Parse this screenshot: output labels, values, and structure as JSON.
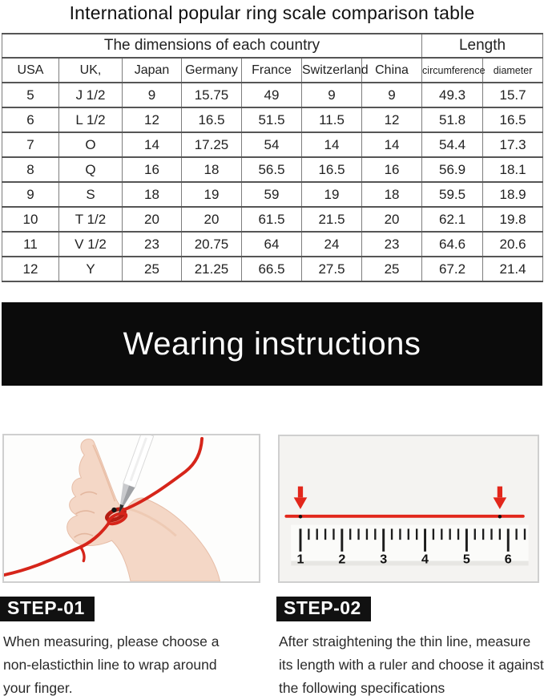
{
  "title": "International popular ring scale comparison table",
  "size_table": {
    "group_header_left": "The dimensions of each country",
    "group_header_right": "Length",
    "columns": [
      "USA",
      "UK,",
      "Japan",
      "Germany",
      "France",
      "Switzerland",
      "China",
      "circumference",
      "diameter"
    ],
    "rows": [
      [
        "5",
        "J 1/2",
        "9",
        "15.75",
        "49",
        "9",
        "9",
        "49.3",
        "15.7"
      ],
      [
        "6",
        "L 1/2",
        "12",
        "16.5",
        "51.5",
        "11.5",
        "12",
        "51.8",
        "16.5"
      ],
      [
        "7",
        "O",
        "14",
        "17.25",
        "54",
        "14",
        "14",
        "54.4",
        "17.3"
      ],
      [
        "8",
        "Q",
        "16",
        "18",
        "56.5",
        "16.5",
        "16",
        "56.9",
        "18.1"
      ],
      [
        "9",
        "S",
        "18",
        "19",
        "59",
        "19",
        "18",
        "59.5",
        "18.9"
      ],
      [
        "10",
        "T 1/2",
        "20",
        "20",
        "61.5",
        "21.5",
        "20",
        "62.1",
        "19.8"
      ],
      [
        "11",
        "V 1/2",
        "23",
        "20.75",
        "64",
        "24",
        "23",
        "64.6",
        "20.6"
      ],
      [
        "12",
        "Y",
        "25",
        "21.25",
        "66.5",
        "27.5",
        "25",
        "67.2",
        "21.4"
      ]
    ]
  },
  "banner": {
    "text": "Wearing instructions",
    "bg": "#0b0b0b",
    "fg": "#ffffff"
  },
  "step1": {
    "badge": "STEP-01",
    "lines": [
      "When measuring, please choose a",
      "non-elasticthin line to wrap around",
      "your finger."
    ]
  },
  "step2": {
    "badge": "STEP-02",
    "lines": [
      "After straightening the thin line, measure",
      "its length with a ruler and choose it against",
      "the following specifications"
    ]
  },
  "ruler": {
    "numbers": [
      "1",
      "2",
      "3",
      "4",
      "5",
      "6"
    ],
    "arrow_units": [
      1,
      5.8
    ],
    "accent": "#e2261b"
  },
  "colors": {
    "thread_red": "#d6251a",
    "badge_bg": "#111111"
  }
}
